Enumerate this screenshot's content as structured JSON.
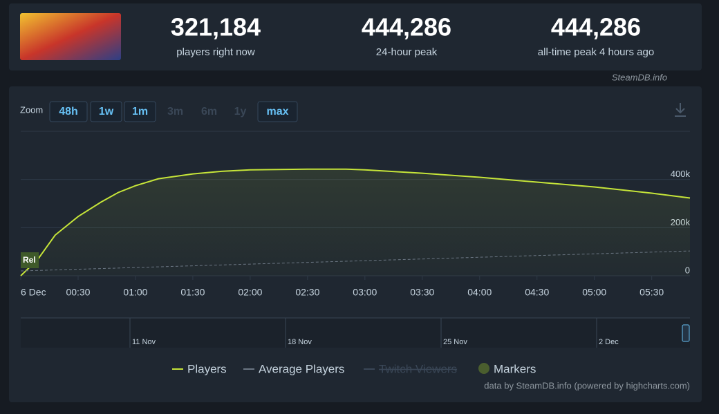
{
  "header": {
    "stats": [
      {
        "value": "321,184",
        "label": "players right now"
      },
      {
        "value": "444,286",
        "label": "24-hour peak"
      },
      {
        "value": "444,286",
        "label": "all-time peak 4 hours ago"
      }
    ],
    "source": "SteamDB.info"
  },
  "zoom": {
    "label": "Zoom",
    "buttons": [
      {
        "text": "48h",
        "enabled": true
      },
      {
        "text": "1w",
        "enabled": true
      },
      {
        "text": "1m",
        "enabled": true
      },
      {
        "text": "3m",
        "enabled": false
      },
      {
        "text": "6m",
        "enabled": false
      },
      {
        "text": "1y",
        "enabled": false
      },
      {
        "text": "max",
        "enabled": true
      }
    ]
  },
  "chart_data": {
    "type": "line",
    "series": [
      {
        "name": "Players",
        "color": "#c6e539",
        "fill": true,
        "x": [
          0,
          9,
          18,
          30,
          42,
          51,
          60,
          72,
          90,
          105,
          120,
          150,
          170,
          180,
          210,
          240,
          270,
          300,
          330,
          350
        ],
        "values": [
          0,
          69000,
          169000,
          246000,
          306000,
          346000,
          374000,
          403000,
          423000,
          434000,
          440000,
          443000,
          443000,
          440000,
          426000,
          409000,
          389000,
          369000,
          343000,
          323000
        ]
      },
      {
        "name": "Average Players",
        "color": "#6b7683",
        "dashed": true,
        "x": [
          0,
          350
        ],
        "values": [
          20000,
          103000
        ]
      }
    ],
    "hidden_series": [
      {
        "name": "Twitch Viewers",
        "color": "#3a4757"
      }
    ],
    "markers_legend": {
      "name": "Markers",
      "color": "#4a5e2e"
    },
    "flags": [
      {
        "x": 0,
        "label": "Rel"
      }
    ],
    "xlim": [
      0,
      350
    ],
    "xticks": [
      {
        "value": 0,
        "label": "6 Dec"
      },
      {
        "value": 30,
        "label": "00:30"
      },
      {
        "value": 60,
        "label": "01:00"
      },
      {
        "value": 90,
        "label": "01:30"
      },
      {
        "value": 120,
        "label": "02:00"
      },
      {
        "value": 150,
        "label": "02:30"
      },
      {
        "value": 180,
        "label": "03:00"
      },
      {
        "value": 210,
        "label": "03:30"
      },
      {
        "value": 240,
        "label": "04:00"
      },
      {
        "value": 270,
        "label": "04:30"
      },
      {
        "value": 300,
        "label": "05:00"
      },
      {
        "value": 330,
        "label": "05:30"
      }
    ],
    "ylim": [
      0,
      600000
    ],
    "yticks": [
      {
        "value": 0,
        "label": "0"
      },
      {
        "value": 200000,
        "label": "200k"
      },
      {
        "value": 400000,
        "label": "400k"
      }
    ],
    "grid": true,
    "navigator_labels": [
      "11 Nov",
      "18 Nov",
      "25 Nov",
      "2 Dec"
    ],
    "credits": "data by SteamDB.info (powered by highcharts.com)"
  }
}
